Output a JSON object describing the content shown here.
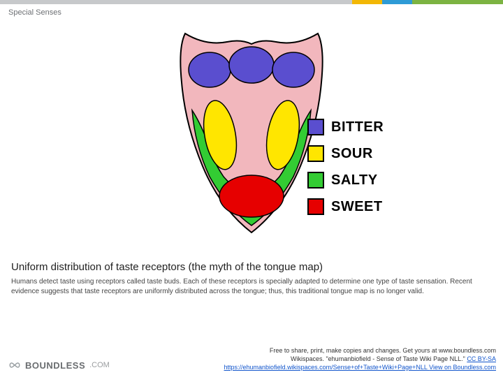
{
  "topbar_colors": [
    "#c7c9cb",
    "#f2b705",
    "#2e9bd6",
    "#7cb342"
  ],
  "topbar_widths": [
    70,
    6,
    6,
    18
  ],
  "header": {
    "title": "Special Senses"
  },
  "diagram": {
    "type": "infographic",
    "tongue": {
      "outline_color": "#000000",
      "base_color": "#f2b7bd",
      "regions": {
        "bitter": {
          "color": "#5a4ecf"
        },
        "sour": {
          "color": "#ffe600"
        },
        "salty": {
          "color": "#33cc33"
        },
        "sweet": {
          "color": "#e60000"
        }
      }
    },
    "legend": [
      {
        "label": "BITTER",
        "color": "#5a4ecf"
      },
      {
        "label": "SOUR",
        "color": "#ffe600"
      },
      {
        "label": "SALTY",
        "color": "#33cc33"
      },
      {
        "label": "SWEET",
        "color": "#e60000"
      }
    ]
  },
  "caption": {
    "title": "Uniform distribution of taste receptors (the myth of the tongue map)",
    "body": "Humans detect taste using receptors called taste buds. Each of these receptors is specially adapted to determine one type of taste sensation. Recent evidence suggests that taste receptors are uniformly distributed across the tongue; thus, this traditional tongue map is no longer valid."
  },
  "footer": {
    "brand": "BOUNDLESS",
    "brand_suffix": ".COM",
    "line1": "Free to share, print, make copies and changes. Get yours at www.boundless.com",
    "attr_prefix": "Wikispaces. \"ehumanbiofield - Sense of Taste Wiki Page NLL.\" ",
    "attr_license": "CC BY-SA ",
    "attr_url": "https://ehumanbiofield.wikispaces.com/Sense+of+Taste+Wiki+Page+NLL ",
    "attr_view": "View on Boundless.com"
  }
}
